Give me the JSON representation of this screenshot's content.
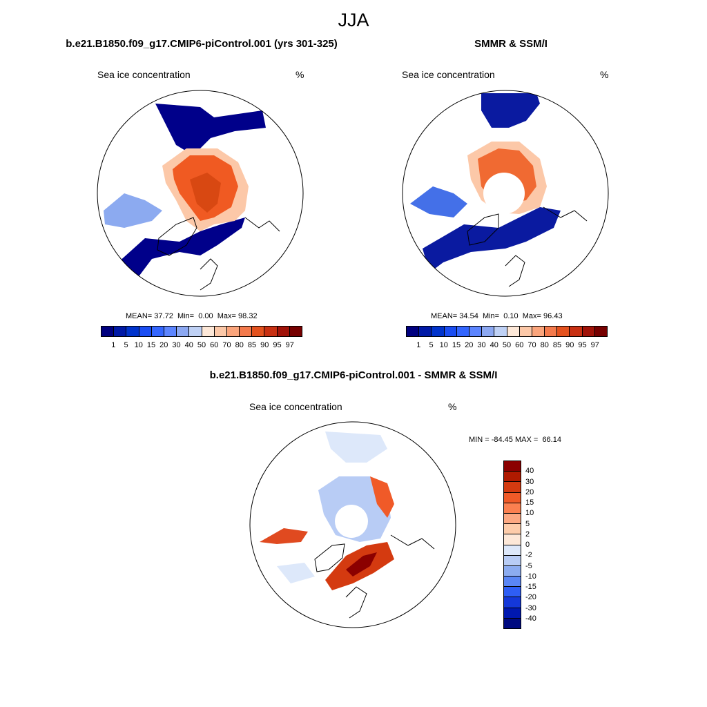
{
  "figure": {
    "title": "JJA",
    "panel1_title": "b.e21.B1850.f09_g17.CMIP6-piControl.001 (yrs 301-325)",
    "panel2_title": "SMMR & SSM/I",
    "panel3_title": "b.e21.B1850.f09_g17.CMIP6-piControl.001 - SMMR & SSM/I"
  },
  "chart_data": [
    {
      "type": "heatmap",
      "title": "b.e21.B1850.f09_g17.CMIP6-piControl.001 (yrs 301-325)",
      "variable": "Sea ice concentration",
      "units": "%",
      "projection": "north polar stereographic",
      "stats": {
        "mean_label": "MEAN=",
        "mean": "37.72",
        "min_label": "Min=",
        "min": "0.00",
        "max_label": "Max=",
        "max": "98.32"
      },
      "colorbar": {
        "levels": [
          "1",
          "5",
          "10",
          "15",
          "20",
          "30",
          "40",
          "50",
          "60",
          "70",
          "80",
          "85",
          "90",
          "95",
          "97"
        ],
        "colors": [
          "#00007f",
          "#0019a6",
          "#0033cc",
          "#1a4df2",
          "#3366ff",
          "#5c85ff",
          "#8ca8f2",
          "#bfd1f5",
          "#fde8d8",
          "#fcc8a8",
          "#fba57c",
          "#f47a4c",
          "#e4521e",
          "#c83012",
          "#a01208",
          "#760000"
        ]
      }
    },
    {
      "type": "heatmap",
      "title": "SMMR & SSM/I",
      "variable": "Sea ice concentration",
      "units": "%",
      "projection": "north polar stereographic",
      "stats": {
        "mean_label": "MEAN=",
        "mean": "34.54",
        "min_label": "Min=",
        "min": "0.10",
        "max_label": "Max=",
        "max": "96.43"
      },
      "colorbar": {
        "levels": [
          "1",
          "5",
          "10",
          "15",
          "20",
          "30",
          "40",
          "50",
          "60",
          "70",
          "80",
          "85",
          "90",
          "95",
          "97"
        ],
        "colors": [
          "#00007f",
          "#0019a6",
          "#0033cc",
          "#1a4df2",
          "#3366ff",
          "#5c85ff",
          "#8ca8f2",
          "#bfd1f5",
          "#fde8d8",
          "#fcc8a8",
          "#fba57c",
          "#f47a4c",
          "#e4521e",
          "#c83012",
          "#a01208",
          "#760000"
        ]
      }
    },
    {
      "type": "heatmap",
      "title": "b.e21.B1850.f09_g17.CMIP6-piControl.001 - SMMR & SSM/I",
      "variable": "Sea ice concentration",
      "units": "%",
      "projection": "north polar stereographic",
      "stats": {
        "min_label": "MIN =",
        "min": "-84.45",
        "max_label": "MAX =",
        "max": "66.14"
      },
      "colorbar": {
        "levels": [
          "40",
          "30",
          "20",
          "15",
          "10",
          "5",
          "2",
          "0",
          "-2",
          "-5",
          "-10",
          "-15",
          "-20",
          "-30",
          "-40"
        ],
        "colors": [
          "#8b0000",
          "#b01a00",
          "#d43a10",
          "#f05a28",
          "#fb8050",
          "#fca882",
          "#fdccaa",
          "#fde8d8",
          "#dde8fa",
          "#b8ccf5",
          "#8cacf0",
          "#5a86f5",
          "#2e5ef5",
          "#1438d9",
          "#0018b0",
          "#000a80"
        ]
      }
    }
  ]
}
